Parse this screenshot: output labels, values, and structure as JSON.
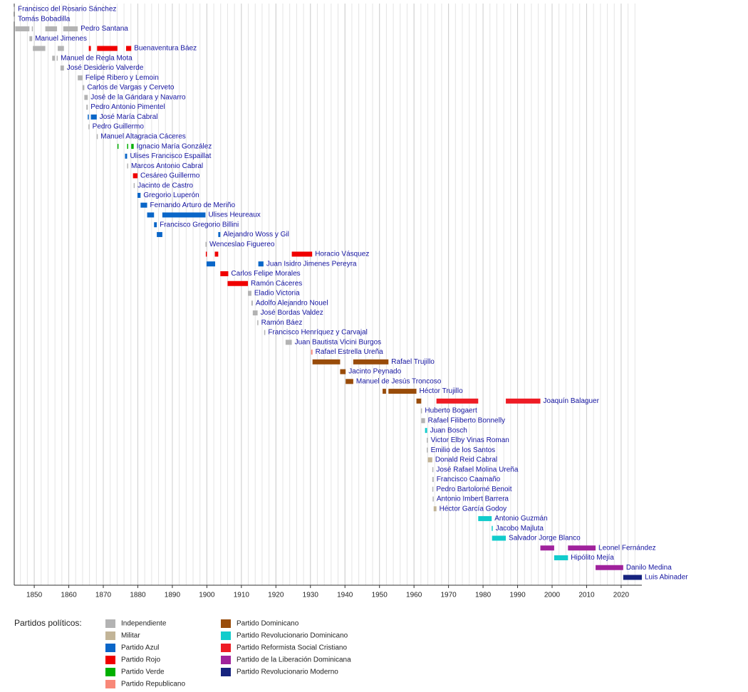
{
  "chart_data": {
    "type": "timeline",
    "xlim": [
      1844,
      2026
    ],
    "xticks": [
      1850,
      1860,
      1870,
      1880,
      1890,
      1900,
      1910,
      1920,
      1930,
      1940,
      1950,
      1960,
      1970,
      1980,
      1990,
      2000,
      2010,
      2020
    ],
    "minor_grid_step": 2,
    "legend_title": "Partidos políticos:",
    "parties": [
      {
        "name": "Independiente",
        "color": "#b3b3b3"
      },
      {
        "name": "Militar",
        "color": "#c2b497"
      },
      {
        "name": "Partido Azul",
        "color": "#0a66c8"
      },
      {
        "name": "Partido Rojo",
        "color": "#f00000"
      },
      {
        "name": "Partido Verde",
        "color": "#00b000"
      },
      {
        "name": "Partido Republicano",
        "color": "#f88878"
      },
      {
        "name": "Partido Dominicano",
        "color": "#994c0a"
      },
      {
        "name": "Partido Revolucionario Dominicano",
        "color": "#12cccc"
      },
      {
        "name": "Partido Reformista Social Cristiano",
        "color": "#ee1c25"
      },
      {
        "name": "Partido de la Liberación Dominicana",
        "color": "#a0229c"
      },
      {
        "name": "Partido Revolucionario Moderno",
        "color": "#16237e"
      }
    ],
    "rows": [
      {
        "name": "Francisco del Rosario Sánchez",
        "terms": [
          [
            1844.1,
            1844.4,
            0
          ]
        ]
      },
      {
        "name": "Tomás Bobadilla",
        "terms": [
          [
            1844.1,
            1844.4,
            0
          ]
        ]
      },
      {
        "name": "Pedro Santana",
        "terms": [
          [
            1844.5,
            1848.6,
            0
          ],
          [
            1849.3,
            1849.6,
            0
          ],
          [
            1853.2,
            1856.6,
            0
          ],
          [
            1858.4,
            1862.6,
            0
          ]
        ]
      },
      {
        "name": "Manuel Jimenes",
        "terms": [
          [
            1848.6,
            1849.4,
            0
          ]
        ]
      },
      {
        "name": "Buenaventura Báez",
        "terms": [
          [
            1849.6,
            1853.2,
            0
          ],
          [
            1856.8,
            1858.6,
            0
          ],
          [
            1865.8,
            1866.4,
            3
          ],
          [
            1868.2,
            1874.1,
            3
          ],
          [
            1876.6,
            1878.1,
            3
          ]
        ]
      },
      {
        "name": "Manuel de Regla Mota",
        "terms": [
          [
            1855.2,
            1856.0,
            0
          ],
          [
            1856.5,
            1856.8,
            0
          ]
        ]
      },
      {
        "name": "José Desiderio Valverde",
        "terms": [
          [
            1857.6,
            1858.6,
            0
          ]
        ]
      },
      {
        "name": "Felipe Ribero y Lemoin",
        "terms": [
          [
            1862.6,
            1864.0,
            0
          ]
        ]
      },
      {
        "name": "Carlos de Vargas y Cerveto",
        "terms": [
          [
            1864.0,
            1864.5,
            0
          ]
        ]
      },
      {
        "name": "José de la Gándara y Navarro",
        "terms": [
          [
            1864.5,
            1865.5,
            0
          ]
        ]
      },
      {
        "name": "Pedro Antonio Pimentel",
        "terms": [
          [
            1865.1,
            1865.5,
            0
          ]
        ]
      },
      {
        "name": "José María Cabral",
        "terms": [
          [
            1865.5,
            1865.8,
            2
          ],
          [
            1866.4,
            1868.1,
            2
          ]
        ]
      },
      {
        "name": "Pedro Guillermo",
        "terms": [
          [
            1865.7,
            1865.9,
            0
          ]
        ]
      },
      {
        "name": "Manuel Altagracia Cáceres",
        "terms": [
          [
            1868.1,
            1868.3,
            0
          ]
        ]
      },
      {
        "name": "Ignacio María González",
        "terms": [
          [
            1874.1,
            1874.4,
            4
          ],
          [
            1876.9,
            1877.1,
            4
          ],
          [
            1878.1,
            1878.8,
            4
          ]
        ]
      },
      {
        "name": "Ulises Francisco Espaillat",
        "terms": [
          [
            1876.3,
            1876.9,
            2
          ]
        ]
      },
      {
        "name": "Marcos Antonio Cabral",
        "terms": [
          [
            1876.9,
            1877.1,
            0
          ]
        ]
      },
      {
        "name": "Cesáreo Guillermo",
        "terms": [
          [
            1878.6,
            1879.9,
            3
          ]
        ]
      },
      {
        "name": "Jacinto de Castro",
        "terms": [
          [
            1878.8,
            1879.0,
            0
          ]
        ]
      },
      {
        "name": "Gregorio Luperón",
        "terms": [
          [
            1879.9,
            1880.8,
            2
          ]
        ]
      },
      {
        "name": "Fernando Arturo de Meriño",
        "terms": [
          [
            1880.8,
            1882.7,
            2
          ]
        ]
      },
      {
        "name": "Ulises Heureaux",
        "terms": [
          [
            1882.7,
            1884.7,
            2
          ],
          [
            1887.1,
            1899.6,
            2
          ]
        ]
      },
      {
        "name": "Francisco Gregorio Billini",
        "terms": [
          [
            1884.7,
            1885.5,
            2
          ]
        ]
      },
      {
        "name": "Alejandro Woss y Gil",
        "terms": [
          [
            1885.5,
            1887.1,
            2
          ],
          [
            1903.3,
            1903.9,
            2
          ]
        ]
      },
      {
        "name": "Wenceslao Figuereo",
        "terms": [
          [
            1899.6,
            1899.8,
            0
          ]
        ]
      },
      {
        "name": "Horacio Vásquez",
        "terms": [
          [
            1899.7,
            1900.0,
            3
          ],
          [
            1902.3,
            1903.3,
            3
          ],
          [
            1924.6,
            1930.5,
            3
          ]
        ]
      },
      {
        "name": "Juan Isidro Jimenes Pereyra",
        "terms": [
          [
            1899.9,
            1902.4,
            2
          ],
          [
            1914.9,
            1916.4,
            2
          ]
        ]
      },
      {
        "name": "Carlos Felipe Morales",
        "terms": [
          [
            1903.9,
            1906.2,
            3
          ]
        ]
      },
      {
        "name": "Ramón Cáceres",
        "terms": [
          [
            1906.0,
            1911.9,
            3
          ]
        ]
      },
      {
        "name": "Eladio Victoria",
        "terms": [
          [
            1911.9,
            1912.9,
            0
          ]
        ]
      },
      {
        "name": "Adolfo Alejandro Nouel",
        "terms": [
          [
            1912.9,
            1913.3,
            0
          ]
        ]
      },
      {
        "name": "José Bordas Valdez",
        "terms": [
          [
            1913.3,
            1914.7,
            0
          ]
        ]
      },
      {
        "name": "Ramón Báez",
        "terms": [
          [
            1914.6,
            1914.9,
            0
          ]
        ]
      },
      {
        "name": "Francisco Henríquez y Carvajal",
        "terms": [
          [
            1916.6,
            1916.9,
            0
          ]
        ]
      },
      {
        "name": "Juan Bautista Vicini Burgos",
        "terms": [
          [
            1922.8,
            1924.6,
            0
          ]
        ]
      },
      {
        "name": "Rafael Estrella Ureña",
        "terms": [
          [
            1930.2,
            1930.6,
            5
          ]
        ]
      },
      {
        "name": "Rafael Trujillo",
        "terms": [
          [
            1930.6,
            1938.6,
            6
          ],
          [
            1942.4,
            1952.6,
            6
          ]
        ]
      },
      {
        "name": "Jacinto Peynado",
        "terms": [
          [
            1938.6,
            1940.2,
            6
          ]
        ]
      },
      {
        "name": "Manuel de Jesús Troncoso",
        "terms": [
          [
            1940.2,
            1942.4,
            6
          ]
        ]
      },
      {
        "name": "Héctor Trujillo",
        "terms": [
          [
            1950.9,
            1951.9,
            6
          ],
          [
            1952.6,
            1960.7,
            6
          ]
        ]
      },
      {
        "name": "Joaquín Balaguer",
        "terms": [
          [
            1960.7,
            1962.1,
            6
          ],
          [
            1966.5,
            1978.6,
            8
          ],
          [
            1986.6,
            1996.6,
            8
          ]
        ]
      },
      {
        "name": "Huberto Bogaert",
        "terms": [
          [
            1962.0,
            1962.2,
            0
          ]
        ]
      },
      {
        "name": "Rafael Filiberto Bonnelly",
        "terms": [
          [
            1962.1,
            1963.2,
            0
          ]
        ]
      },
      {
        "name": "Juan Bosch",
        "terms": [
          [
            1963.2,
            1963.8,
            7
          ]
        ]
      },
      {
        "name": "Victor Elby Vinas Roman",
        "terms": [
          [
            1963.7,
            1963.9,
            0
          ]
        ]
      },
      {
        "name": "Emilio de los Santos",
        "terms": [
          [
            1963.7,
            1964.0,
            0
          ]
        ]
      },
      {
        "name": "Donald Reid Cabral",
        "terms": [
          [
            1964.0,
            1965.3,
            1
          ]
        ]
      },
      {
        "name": "José Rafael Molina Ureña",
        "terms": [
          [
            1965.3,
            1965.5,
            0
          ]
        ]
      },
      {
        "name": "Francisco Caamaño",
        "terms": [
          [
            1965.3,
            1965.7,
            0
          ]
        ]
      },
      {
        "name": "Pedro Bartolomé Benoit",
        "terms": [
          [
            1965.3,
            1965.5,
            0
          ]
        ]
      },
      {
        "name": "Antonio Imbert Barrera",
        "terms": [
          [
            1965.4,
            1965.7,
            0
          ]
        ]
      },
      {
        "name": "Héctor García Godoy",
        "terms": [
          [
            1965.7,
            1966.5,
            1
          ]
        ]
      },
      {
        "name": "Antonio Guzmán",
        "terms": [
          [
            1978.6,
            1982.5,
            7
          ]
        ]
      },
      {
        "name": "Jacobo Majluta",
        "terms": [
          [
            1982.5,
            1982.7,
            7
          ]
        ]
      },
      {
        "name": "Salvador Jorge Blanco",
        "terms": [
          [
            1982.6,
            1986.6,
            7
          ]
        ]
      },
      {
        "name": "Leonel Fernández",
        "terms": [
          [
            1996.6,
            2000.6,
            9
          ],
          [
            2004.6,
            2012.6,
            9
          ]
        ]
      },
      {
        "name": "Hipólito Mejía",
        "terms": [
          [
            2000.6,
            2004.6,
            7
          ]
        ]
      },
      {
        "name": "Danilo Medina",
        "terms": [
          [
            2012.6,
            2020.6,
            9
          ]
        ]
      },
      {
        "name": "Luis Abinader",
        "terms": [
          [
            2020.6,
            2026.0,
            10
          ]
        ]
      }
    ]
  }
}
